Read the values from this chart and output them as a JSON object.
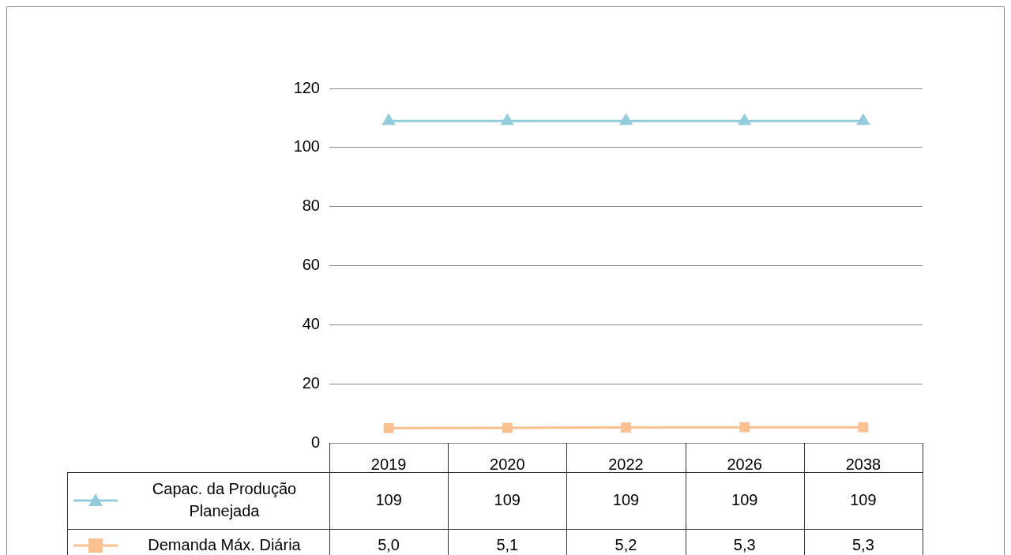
{
  "chart_data": {
    "type": "line",
    "categories": [
      "2019",
      "2020",
      "2022",
      "2026",
      "2038"
    ],
    "series": [
      {
        "name": "Capac. da Produção Planejada",
        "color": "#93cddd",
        "marker": "triangle",
        "values": [
          109,
          109,
          109,
          109,
          109
        ],
        "value_labels": [
          "109",
          "109",
          "109",
          "109",
          "109"
        ]
      },
      {
        "name": "Demanda Máx. Diária",
        "color": "#fac090",
        "marker": "square",
        "values": [
          5.0,
          5.1,
          5.2,
          5.3,
          5.3
        ],
        "value_labels": [
          "5,0",
          "5,1",
          "5,2",
          "5,3",
          "5,3"
        ]
      }
    ],
    "ylim": [
      0,
      120
    ],
    "yticks": [
      0,
      20,
      40,
      60,
      80,
      100,
      120
    ],
    "grid": "y",
    "legend": "bottom"
  }
}
